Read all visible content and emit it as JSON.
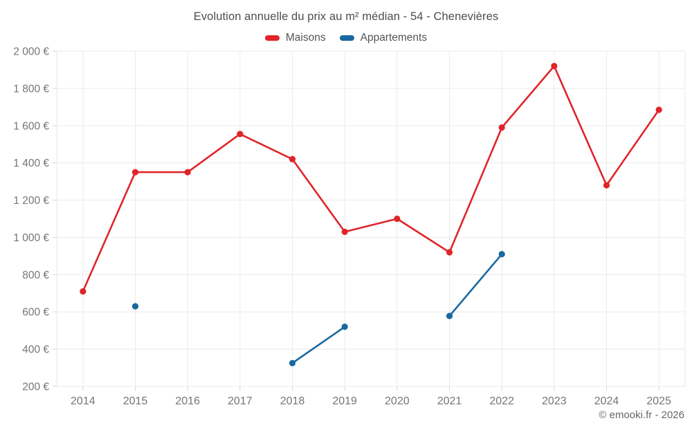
{
  "page": {
    "title": "Evolution annuelle du prix au m² médian - 54 - Chenevières",
    "footer": "© emooki.fr - 2026"
  },
  "legend": {
    "items": [
      {
        "label": "Maisons",
        "color": "#e02429"
      },
      {
        "label": "Appartements",
        "color": "#17699e"
      }
    ]
  },
  "chart_data": {
    "type": "line",
    "title": "Evolution annuelle du prix au m² médian - 54 - Chenevières",
    "categories": [
      "2014",
      "2015",
      "2016",
      "2017",
      "2018",
      "2019",
      "2020",
      "2021",
      "2022",
      "2023",
      "2024",
      "2025"
    ],
    "series": [
      {
        "name": "Maisons",
        "color": "#e02429",
        "values": [
          710,
          1350,
          1350,
          1555,
          1420,
          1030,
          1100,
          920,
          1590,
          1920,
          1280,
          1685
        ]
      },
      {
        "name": "Appartements",
        "color": "#17699e",
        "values": [
          null,
          630,
          null,
          null,
          325,
          520,
          null,
          578,
          910,
          null,
          null,
          null
        ]
      }
    ],
    "xlabel": "",
    "ylabel": "",
    "ylim": [
      200,
      2000
    ],
    "ytick_step": 200,
    "ytick_suffix": " €",
    "grid": true,
    "legend_position": "top",
    "annotations": [
      "© emooki.fr - 2026"
    ]
  },
  "style": {
    "grid_color": "#eaeaea",
    "tick_color": "#d6d6d6",
    "axis_label_color": "#757575",
    "title_color": "#4d4d4d",
    "footer_color": "#666666",
    "background": "#ffffff"
  }
}
